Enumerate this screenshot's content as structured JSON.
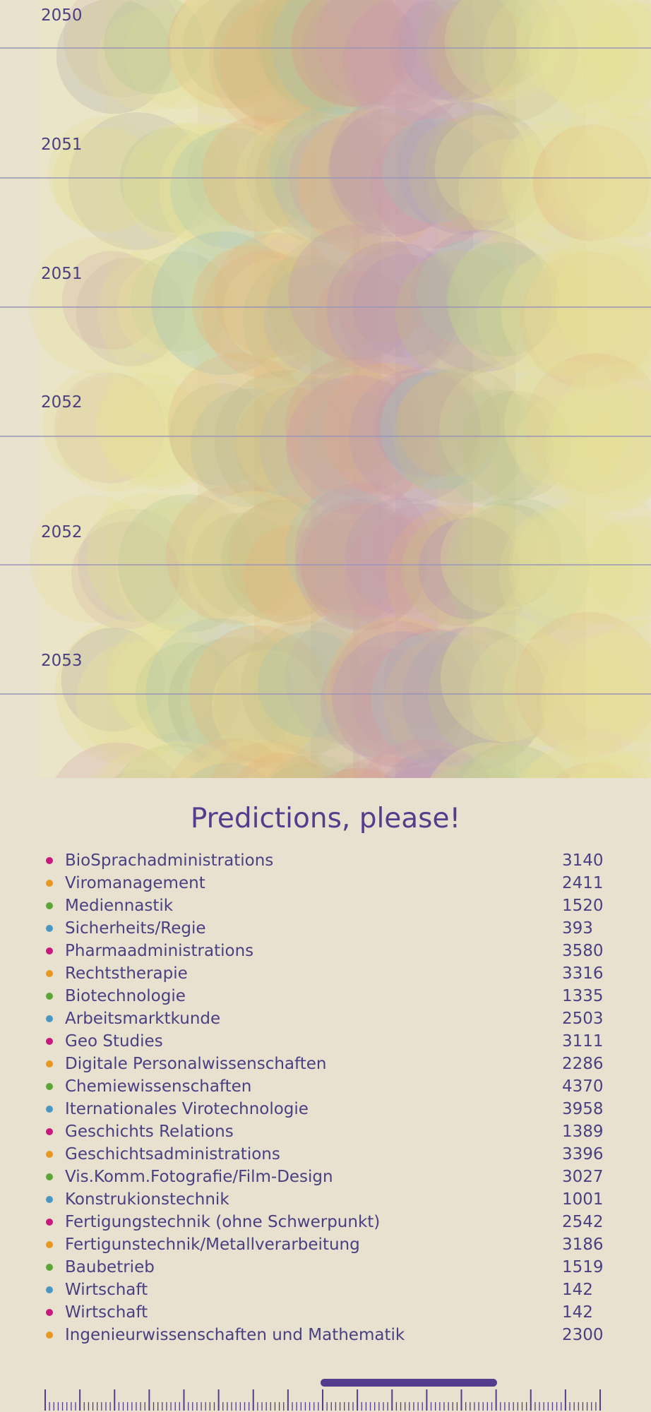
{
  "chart_data": {
    "type": "other",
    "y_tick_labels": [
      "2050",
      "2051",
      "2051",
      "2052",
      "2052",
      "2053"
    ],
    "grid": true
  },
  "predictions": {
    "title": "Predictions, please!",
    "items": [
      {
        "name": "BioSprachadministrations",
        "value": "3140",
        "color": "#c7197e"
      },
      {
        "name": "Viromanagement",
        "value": "2411",
        "color": "#e8981e"
      },
      {
        "name": "Mediennastik",
        "value": "1520",
        "color": "#5aa636"
      },
      {
        "name": "Sicherheits/Regie",
        "value": "393",
        "color": "#4a97c4"
      },
      {
        "name": "Pharmaadministrations",
        "value": "3580",
        "color": "#c7197e"
      },
      {
        "name": "Rechtstherapie",
        "value": "3316",
        "color": "#e8981e"
      },
      {
        "name": "Biotechnologie",
        "value": "1335",
        "color": "#5aa636"
      },
      {
        "name": "Arbeitsmarktkunde",
        "value": "2503",
        "color": "#4a97c4"
      },
      {
        "name": "Geo Studies",
        "value": "3111",
        "color": "#c7197e"
      },
      {
        "name": "Digitale Personalwissenschaften",
        "value": "2286",
        "color": "#e8981e"
      },
      {
        "name": "Chemiewissenschaften",
        "value": "4370",
        "color": "#5aa636"
      },
      {
        "name": "Iternationales Virotechnologie",
        "value": "3958",
        "color": "#4a97c4"
      },
      {
        "name": "Geschichts Relations",
        "value": "1389",
        "color": "#c7197e"
      },
      {
        "name": "Geschichtsadministrations",
        "value": "3396",
        "color": "#e8981e"
      },
      {
        "name": "Vis.Komm.Fotografie/Film-Design",
        "value": "3027",
        "color": "#5aa636"
      },
      {
        "name": "Konstrukionstechnik",
        "value": "1001",
        "color": "#4a97c4"
      },
      {
        "name": "Fertigungstechnik (ohne Schwerpunkt)",
        "value": "2542",
        "color": "#c7197e"
      },
      {
        "name": "Fertigunstechnik/Metallverarbeitung",
        "value": "3186",
        "color": "#e8981e"
      },
      {
        "name": "Baubetrieb",
        "value": "1519",
        "color": "#5aa636"
      },
      {
        "name": "Wirtschaft",
        "value": "142",
        "color": "#4a97c4"
      },
      {
        "name": "Wirtschaft",
        "value": "142",
        "color": "#c7197e"
      },
      {
        "name": "Ingenieurwissenschaften und Mathematik",
        "value": "2300",
        "color": "#e8981e"
      }
    ]
  },
  "colors": {
    "background": "#e8e1cf",
    "text": "#4a3f82",
    "title": "#553d8e",
    "gridline": "#9b95b8",
    "scale_marker": "#553d8e"
  }
}
